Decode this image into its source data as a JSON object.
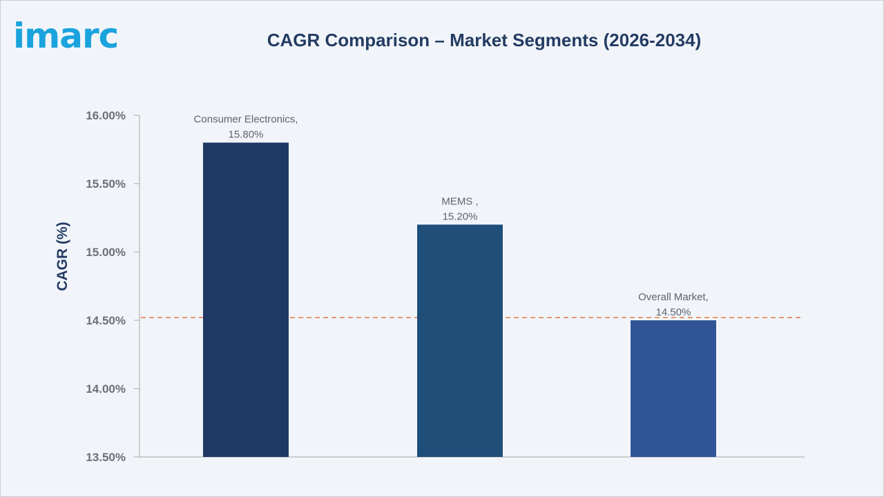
{
  "brand": {
    "logo_text": "imarc",
    "logo_color": "#1ba3dd"
  },
  "chart_data": {
    "type": "bar",
    "title": "CAGR Comparison – Market Segments (2026-2034)",
    "xlabel": "",
    "ylabel": "CAGR (%)",
    "categories": [
      "Consumer Electronics",
      "MEMS",
      "Overall Market"
    ],
    "data_labels": [
      [
        "Consumer Electronics,",
        "15.80%"
      ],
      [
        "MEMS ,",
        "15.20%"
      ],
      [
        "Overall Market,",
        "14.50%"
      ]
    ],
    "values": [
      15.8,
      15.2,
      14.5
    ],
    "bar_colors": [
      "#203864",
      "#1f4e79",
      "#2f5597"
    ],
    "ylim": [
      13.5,
      16.0
    ],
    "yticks": [
      13.5,
      14.0,
      14.5,
      15.0,
      15.5,
      16.0
    ],
    "ytick_labels": [
      "13.50%",
      "14.00%",
      "14.50%",
      "15.00%",
      "15.50%",
      "16.00%"
    ],
    "reference_line": {
      "value": 14.52,
      "style": "dashed",
      "color": "#e8804f"
    },
    "grid": false,
    "legend": "none"
  }
}
